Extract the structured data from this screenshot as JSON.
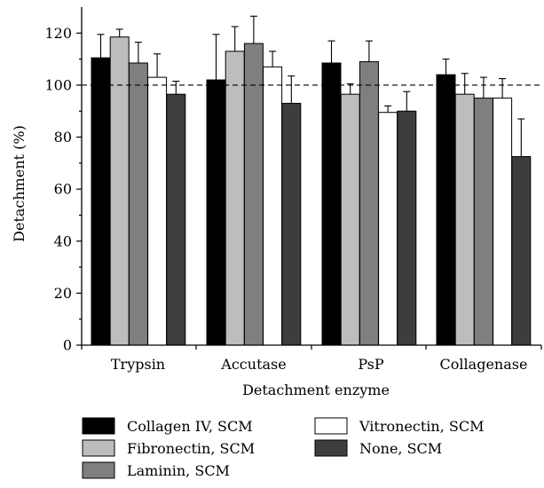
{
  "chart_data": {
    "type": "bar",
    "xlabel": "Detachment enzyme",
    "ylabel": "Detachment (%)",
    "ylim": [
      0,
      130
    ],
    "yticks": [
      0,
      20,
      40,
      60,
      80,
      100,
      120
    ],
    "reference_line": 100,
    "categories": [
      "Trypsin",
      "Accutase",
      "PsP",
      "Collagenase"
    ],
    "legend_position": "bottom",
    "series": [
      {
        "name": "Collagen IV, SCM",
        "color": "#000000",
        "values": [
          110.5,
          102.0,
          108.5,
          104.0
        ],
        "errors": [
          9.0,
          17.5,
          8.5,
          6.0
        ]
      },
      {
        "name": "Fibronectin, SCM",
        "color": "#bdbdbd",
        "values": [
          118.5,
          113.0,
          96.5,
          96.5
        ],
        "errors": [
          3.0,
          9.5,
          4.0,
          8.0
        ]
      },
      {
        "name": "Laminin, SCM",
        "color": "#7f7f7f",
        "values": [
          108.5,
          116.0,
          109.0,
          95.0
        ],
        "errors": [
          8.0,
          10.5,
          8.0,
          8.0
        ]
      },
      {
        "name": "Vitronectin, SCM",
        "color": "#ffffff",
        "values": [
          103.0,
          107.0,
          89.5,
          95.0
        ],
        "errors": [
          9.0,
          6.0,
          2.5,
          7.5
        ]
      },
      {
        "name": "None, SCM",
        "color": "#3d3d3d",
        "values": [
          96.5,
          93.0,
          90.0,
          72.5
        ],
        "errors": [
          5.0,
          10.5,
          7.5,
          14.5
        ]
      }
    ]
  }
}
